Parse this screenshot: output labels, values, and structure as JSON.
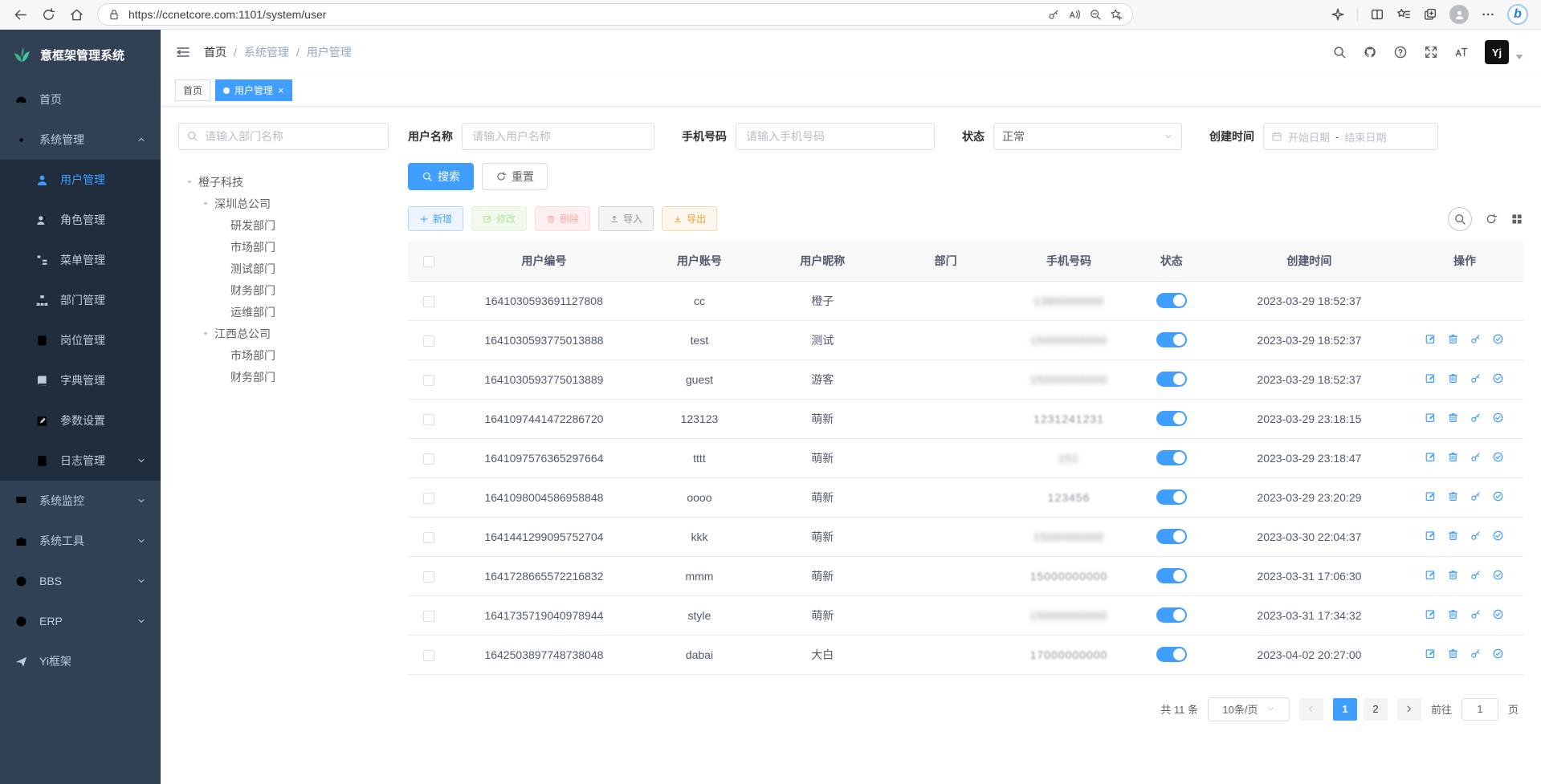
{
  "colors": {
    "accent": "#409eff",
    "sidebar_bg": "#304156",
    "submenu_bg": "#1f2d3d",
    "toggle_on": "#409eff",
    "logo_green": "#3ab188"
  },
  "browser": {
    "url": "https://ccnetcore.com:1101/system/user",
    "left_icons": [
      "back",
      "refresh",
      "home"
    ],
    "url_icons": [
      "lock"
    ],
    "pill_right_icons": [
      "password-key",
      "read-aloud",
      "zoom-out",
      "favorite-add"
    ],
    "right_icons": [
      "shield-sparkle",
      "split-screen",
      "favorites-list",
      "collections-add",
      "profile",
      "more",
      "bing"
    ]
  },
  "sidebar": {
    "logo_text": "意框架管理系统",
    "menu": [
      {
        "label": "首页",
        "icon": "dashboard"
      },
      {
        "label": "系统管理",
        "icon": "gear",
        "caret": "up",
        "children": [
          {
            "label": "用户管理",
            "icon": "user",
            "active": true
          },
          {
            "label": "角色管理",
            "icon": "users"
          },
          {
            "label": "菜单管理",
            "icon": "menutree"
          },
          {
            "label": "部门管理",
            "icon": "depttree"
          },
          {
            "label": "岗位管理",
            "icon": "post"
          },
          {
            "label": "字典管理",
            "icon": "dict"
          },
          {
            "label": "参数设置",
            "icon": "editsq"
          },
          {
            "label": "日志管理",
            "icon": "log",
            "caret": "down"
          }
        ]
      },
      {
        "label": "系统监控",
        "icon": "monitor",
        "caret": "down"
      },
      {
        "label": "系统工具",
        "icon": "tool",
        "caret": "down"
      },
      {
        "label": "BBS",
        "icon": "globe",
        "caret": "down"
      },
      {
        "label": "ERP",
        "icon": "globe",
        "caret": "down"
      },
      {
        "label": "Yi框架",
        "icon": "plane"
      }
    ]
  },
  "header": {
    "breadcrumb": [
      "首页",
      "系统管理",
      "用户管理"
    ],
    "right_icons": [
      "search",
      "github",
      "help",
      "fullscreen",
      "font-size",
      "avatar-yj"
    ],
    "avatar_text": "Yj"
  },
  "tabs": [
    {
      "label": "首页",
      "active": false
    },
    {
      "label": "用户管理",
      "active": true,
      "closable": true
    }
  ],
  "tree": {
    "search_placeholder": "请输入部门名称",
    "nodes": [
      {
        "label": "橙子科技",
        "level": 0,
        "expandable": true
      },
      {
        "label": "深圳总公司",
        "level": 1,
        "expandable": true
      },
      {
        "label": "研发部门",
        "level": 2
      },
      {
        "label": "市场部门",
        "level": 2
      },
      {
        "label": "测试部门",
        "level": 2
      },
      {
        "label": "财务部门",
        "level": 2
      },
      {
        "label": "运维部门",
        "level": 2
      },
      {
        "label": "江西总公司",
        "level": 1,
        "expandable": true
      },
      {
        "label": "市场部门",
        "level": 2
      },
      {
        "label": "财务部门",
        "level": 2
      }
    ]
  },
  "filters": {
    "username_label": "用户名称",
    "username_placeholder": "请输入用户名称",
    "phone_label": "手机号码",
    "phone_placeholder": "请输入手机号码",
    "status_label": "状态",
    "status_value": "正常",
    "date_label": "创建时间",
    "date_start": "开始日期",
    "date_separator": "-",
    "date_end": "结束日期",
    "search_label": "搜索",
    "reset_label": "重置"
  },
  "toolbar": {
    "add": "新增",
    "edit": "修改",
    "delete": "删除",
    "import": "导入",
    "export": "导出",
    "right_icons": [
      "search-toggle",
      "refresh",
      "grid-columns"
    ]
  },
  "table": {
    "columns": [
      "用户编号",
      "用户账号",
      "用户昵称",
      "部门",
      "手机号码",
      "状态",
      "创建时间",
      "操作"
    ],
    "rows": [
      {
        "id": "1641030593691127808",
        "account": "cc",
        "nick": "橙子",
        "dept": "",
        "phone": "1380000000",
        "phone_blur": "heavy",
        "status_on": true,
        "created": "2023-03-29 18:52:37",
        "actions": false
      },
      {
        "id": "1641030593775013888",
        "account": "test",
        "nick": "测试",
        "dept": "",
        "phone": "15000000000",
        "phone_blur": "heavy",
        "status_on": true,
        "created": "2023-03-29 18:52:37",
        "actions": true
      },
      {
        "id": "1641030593775013889",
        "account": "guest",
        "nick": "游客",
        "dept": "",
        "phone": "15000000000",
        "phone_blur": "heavy",
        "status_on": true,
        "created": "2023-03-29 18:52:37",
        "actions": true
      },
      {
        "id": "1641097441472286720",
        "account": "123123",
        "nick": "萌新",
        "dept": "",
        "phone": "1231241231",
        "phone_blur": "light",
        "status_on": true,
        "created": "2023-03-29 23:18:15",
        "actions": true
      },
      {
        "id": "1641097576365297664",
        "account": "tttt",
        "nick": "萌新",
        "dept": "",
        "phone": "151",
        "phone_blur": "heavy",
        "status_on": true,
        "created": "2023-03-29 23:18:47",
        "actions": true
      },
      {
        "id": "1641098004586958848",
        "account": "oooo",
        "nick": "萌新",
        "dept": "",
        "phone": "123456",
        "phone_blur": "light",
        "status_on": true,
        "created": "2023-03-29 23:20:29",
        "actions": true
      },
      {
        "id": "1641441299095752704",
        "account": "kkk",
        "nick": "萌新",
        "dept": "",
        "phone": "1500000000",
        "phone_blur": "heavy",
        "status_on": true,
        "created": "2023-03-30 22:04:37",
        "actions": true
      },
      {
        "id": "1641728665572216832",
        "account": "mmm",
        "nick": "萌新",
        "dept": "",
        "phone": "15000000000",
        "phone_blur": "light",
        "status_on": true,
        "created": "2023-03-31 17:06:30",
        "actions": true
      },
      {
        "id": "1641735719040978944",
        "account": "style",
        "nick": "萌新",
        "dept": "",
        "phone": "15000000000",
        "phone_blur": "heavy",
        "status_on": true,
        "created": "2023-03-31 17:34:32",
        "actions": true
      },
      {
        "id": "1642503897748738048",
        "account": "dabai",
        "nick": "大白",
        "dept": "",
        "phone": "17000000000",
        "phone_blur": "light",
        "status_on": true,
        "created": "2023-04-02 20:27:00",
        "actions": true
      }
    ],
    "row_action_icons": [
      "edit-pen",
      "trash",
      "key",
      "check-circle"
    ]
  },
  "pagination": {
    "total_label": "共 11 条",
    "page_size_label": "10条/页",
    "pages": [
      "1",
      "2"
    ],
    "current_page": "1",
    "goto_label": "前往",
    "goto_value": "1",
    "goto_suffix": "页"
  }
}
